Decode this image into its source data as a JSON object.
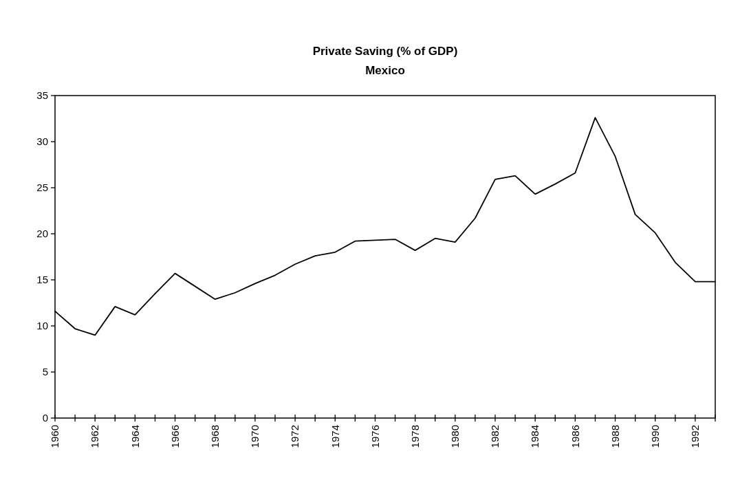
{
  "chart_data": {
    "type": "line",
    "title": "Private Saving (% of GDP)",
    "subtitle": "Mexico",
    "x": [
      1960,
      1961,
      1962,
      1963,
      1964,
      1965,
      1966,
      1967,
      1968,
      1969,
      1970,
      1971,
      1972,
      1973,
      1974,
      1975,
      1976,
      1977,
      1978,
      1979,
      1980,
      1981,
      1982,
      1983,
      1984,
      1985,
      1986,
      1987,
      1988,
      1989,
      1990,
      1991,
      1992,
      1993
    ],
    "series": [
      {
        "color": "#000000",
        "values": [
          11.6,
          9.7,
          9.0,
          12.1,
          11.2,
          13.5,
          15.7,
          14.3,
          12.9,
          13.6,
          14.6,
          15.5,
          16.7,
          17.6,
          18.0,
          19.2,
          19.3,
          19.4,
          18.2,
          19.5,
          19.1,
          21.7,
          25.9,
          26.3,
          24.3,
          25.4,
          26.6,
          32.6,
          28.4,
          22.1,
          20.1,
          16.9,
          14.8,
          14.8
        ]
      }
    ],
    "xlim": [
      1960,
      1993
    ],
    "xticks": [
      1960,
      {
        "value": 1961,
        "label": null
      },
      1962,
      {
        "value": 1963,
        "label": null
      },
      1964,
      {
        "value": 1965,
        "label": null
      },
      1966,
      {
        "value": 1967,
        "label": null
      },
      1968,
      {
        "value": 1969,
        "label": null
      },
      1970,
      {
        "value": 1971,
        "label": null
      },
      1972,
      {
        "value": 1973,
        "label": null
      },
      1974,
      {
        "value": 1975,
        "label": null
      },
      1976,
      {
        "value": 1977,
        "label": null
      },
      1978,
      {
        "value": 1979,
        "label": null
      },
      1980,
      {
        "value": 1981,
        "label": null
      },
      1982,
      {
        "value": 1983,
        "label": null
      },
      1984,
      {
        "value": 1985,
        "label": null
      },
      1986,
      {
        "value": 1987,
        "label": null
      },
      1988,
      {
        "value": 1989,
        "label": null
      },
      1990,
      {
        "value": 1991,
        "label": null
      },
      1992,
      {
        "value": 1993,
        "label": null
      }
    ],
    "ylim": [
      0,
      35
    ],
    "yticks": [
      0,
      5,
      10,
      15,
      20,
      25,
      30,
      35
    ],
    "grid": false,
    "marker": "none",
    "line_style": "solid"
  }
}
